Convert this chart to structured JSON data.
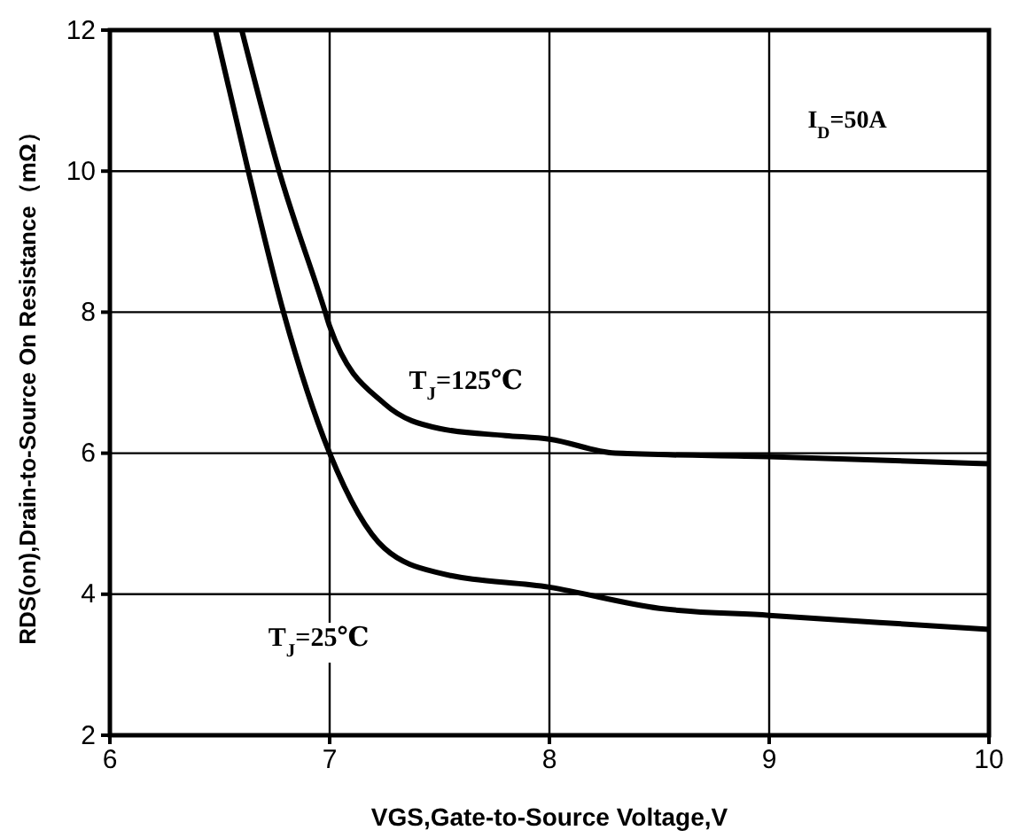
{
  "chart_data": {
    "type": "line",
    "xlabel": "VGS,Gate-to-Source Voltage,V",
    "ylabel": "RDS(on),Drain-to-Source On Resistance（mΩ）",
    "xlim": [
      6,
      10
    ],
    "xticks": [
      6,
      7,
      8,
      9,
      10
    ],
    "ylim": [
      2,
      12
    ],
    "yticks": [
      2,
      4,
      6,
      8,
      10,
      12
    ],
    "grid": true,
    "marker": "none",
    "line_style": "solid",
    "annotations": [
      "I$_{D}$=50A"
    ],
    "series": [
      {
        "name": "T$_{J}$=125℃",
        "color": "#000000",
        "x": [
          6.6,
          6.77,
          6.98,
          7.0,
          7.25,
          7.5,
          7.8,
          8.0,
          8.3,
          9.0,
          10.0
        ],
        "values": [
          12,
          10,
          8,
          7.8,
          6.7,
          6.35,
          6.25,
          6.2,
          6.0,
          5.95,
          5.85
        ]
      },
      {
        "name": "T$_{J}$=25℃",
        "color": "#000000",
        "x": [
          6.48,
          6.63,
          6.79,
          7.0,
          7.25,
          7.5,
          8.0,
          8.5,
          9.0,
          10.0
        ],
        "values": [
          12,
          10,
          8,
          6,
          4.65,
          4.3,
          4.1,
          3.8,
          3.7,
          3.5
        ]
      }
    ]
  }
}
